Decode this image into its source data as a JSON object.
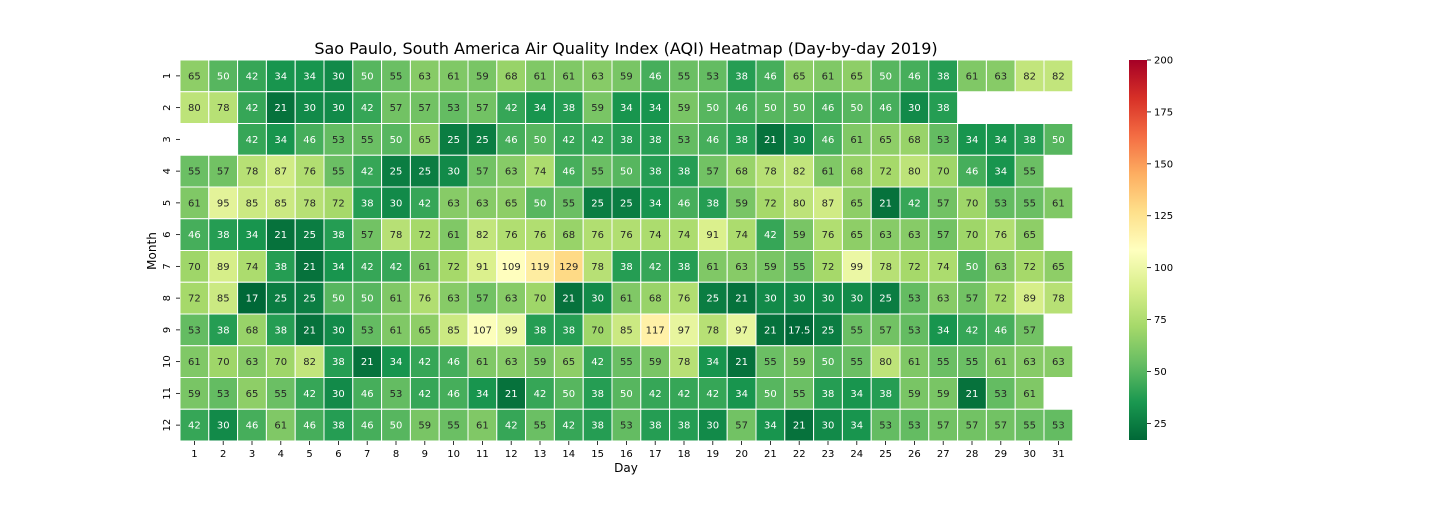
{
  "chart_data": {
    "type": "heatmap",
    "title": "Sao Paulo, South America Air Quality Index (AQI) Heatmap (Day-by-day 2019)",
    "xlabel": "Day",
    "ylabel": "Month",
    "x_categories": [
      "1",
      "2",
      "3",
      "4",
      "5",
      "6",
      "7",
      "8",
      "9",
      "10",
      "11",
      "12",
      "13",
      "14",
      "15",
      "16",
      "17",
      "18",
      "19",
      "20",
      "21",
      "22",
      "23",
      "24",
      "25",
      "26",
      "27",
      "28",
      "29",
      "30",
      "31"
    ],
    "y_categories": [
      "1",
      "2",
      "3",
      "4",
      "5",
      "6",
      "7",
      "8",
      "9",
      "10",
      "11",
      "12"
    ],
    "values": [
      [
        65,
        50,
        42,
        34,
        34,
        30,
        50,
        55,
        63,
        61,
        59,
        68,
        61,
        61,
        63,
        59,
        46,
        55,
        53,
        38,
        46,
        65,
        61,
        65,
        50,
        46,
        38,
        61,
        63,
        82,
        82
      ],
      [
        80,
        78,
        42,
        21,
        30,
        30,
        42,
        57,
        57,
        53,
        57,
        42,
        34,
        38,
        59,
        34,
        34,
        59,
        50,
        46,
        50,
        50,
        46,
        50,
        46,
        30,
        38,
        null,
        null,
        null,
        null
      ],
      [
        null,
        null,
        42,
        34,
        46,
        53,
        55,
        50,
        65,
        25,
        25,
        46,
        50,
        42,
        42,
        38,
        38,
        53,
        46,
        38,
        21,
        30,
        46,
        61,
        65,
        68,
        53,
        34,
        34,
        38,
        50
      ],
      [
        55,
        57,
        78,
        87,
        76,
        55,
        42,
        25,
        25,
        30,
        57,
        63,
        74,
        46,
        55,
        50,
        38,
        38,
        57,
        68,
        78,
        82,
        61,
        68,
        72,
        80,
        70,
        46,
        34,
        55,
        null
      ],
      [
        61,
        95,
        85,
        85,
        78,
        72,
        38,
        30,
        42,
        63,
        63,
        65,
        50,
        55,
        25,
        25,
        34,
        46,
        38,
        59,
        72,
        80,
        87,
        65,
        21,
        42,
        57,
        70,
        53,
        55,
        61
      ],
      [
        46,
        38,
        34,
        21,
        25,
        38,
        57,
        78,
        72,
        61,
        82,
        76,
        76,
        68,
        76,
        76,
        74,
        74,
        91,
        74,
        42,
        59,
        76,
        65,
        63,
        63,
        57,
        70,
        76,
        65,
        null
      ],
      [
        70,
        89,
        74,
        38,
        21,
        34,
        42,
        42,
        61,
        72,
        91,
        109,
        119,
        129,
        78,
        38,
        42,
        38,
        61,
        63,
        59,
        55,
        72,
        99,
        78,
        72,
        74,
        50,
        63,
        72,
        65
      ],
      [
        72,
        85,
        17,
        25,
        25,
        50,
        50,
        61,
        76,
        63,
        57,
        63,
        70,
        21,
        30,
        61,
        68,
        76,
        25,
        21,
        30,
        30,
        30,
        30,
        25,
        53,
        63,
        57,
        72,
        89,
        78
      ],
      [
        53,
        38,
        68,
        38,
        21,
        30,
        53,
        61,
        65,
        85,
        107,
        99,
        38,
        38,
        70,
        85,
        117,
        97,
        78,
        97,
        21,
        17.5,
        25,
        55,
        57,
        53,
        34,
        42,
        46,
        57,
        null
      ],
      [
        61,
        70,
        63,
        70,
        82,
        38,
        21,
        34,
        42,
        46,
        61,
        63,
        59,
        65,
        42,
        55,
        59,
        78,
        34,
        21,
        55,
        59,
        50,
        55,
        80,
        61,
        55,
        55,
        61,
        63,
        63
      ],
      [
        59,
        53,
        65,
        55,
        42,
        30,
        46,
        53,
        42,
        46,
        34,
        21,
        42,
        50,
        38,
        50,
        42,
        42,
        42,
        34,
        50,
        55,
        38,
        34,
        38,
        59,
        59,
        21,
        53,
        61,
        null
      ],
      [
        42,
        30,
        46,
        61,
        46,
        38,
        46,
        50,
        59,
        55,
        61,
        42,
        55,
        42,
        38,
        53,
        38,
        38,
        30,
        57,
        34,
        21,
        30,
        34,
        53,
        53,
        57,
        57,
        57,
        55,
        53
      ]
    ],
    "colorscale": "RdYlGn_r",
    "vmin": 17,
    "vmax": 200,
    "colorbar_ticks": [
      "25",
      "50",
      "75",
      "100",
      "125",
      "150",
      "175",
      "200"
    ],
    "annotate": true,
    "grid": false,
    "legend": "colorbar-right"
  }
}
